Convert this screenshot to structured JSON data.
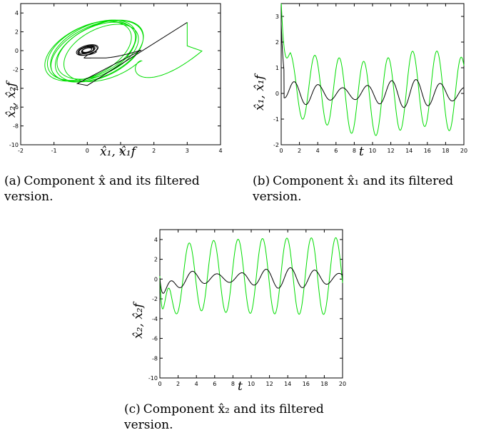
{
  "figure": {
    "captions": [
      {
        "id": "(a)",
        "line1": "Component x̂ and its filtered",
        "line2": "version."
      },
      {
        "id": "(b)",
        "line1": "Component x̂₁ and its filtered",
        "line2": "version."
      },
      {
        "id": "(c)",
        "line1": "Component x̂₂ and its filtered",
        "line2": "version."
      }
    ]
  },
  "chart_data": [
    {
      "type": "line",
      "panel": "a",
      "xlabel": "x̂₁, x̂₁f",
      "ylabel": "x̂₂, x̂₂f",
      "xlim": [
        -2,
        4
      ],
      "ylim": [
        -10,
        5
      ],
      "xticks": [
        -2,
        -1,
        0,
        1,
        2,
        3,
        4
      ],
      "yticks": [
        -10,
        -8,
        -6,
        -4,
        -2,
        0,
        2,
        4
      ],
      "colors": {
        "unfiltered": "#00dd00",
        "filtered": "#000000"
      },
      "phase_plot": true
    },
    {
      "type": "line",
      "panel": "b",
      "xlabel": "t",
      "ylabel": "x̂₁, x̂₁f",
      "xlim": [
        0,
        20
      ],
      "ylim": [
        -2,
        3.5
      ],
      "xticks": [
        0,
        2,
        4,
        6,
        8,
        10,
        12,
        14,
        16,
        18,
        20
      ],
      "yticks": [
        -2,
        -1,
        0,
        1,
        2,
        3
      ],
      "colors": {
        "unfiltered": "#00dd00",
        "filtered": "#000000"
      }
    },
    {
      "type": "line",
      "panel": "c",
      "xlabel": "t",
      "ylabel": "x̂₂, x̂₂f",
      "xlim": [
        0,
        20
      ],
      "ylim": [
        -10,
        5
      ],
      "xticks": [
        0,
        2,
        4,
        6,
        8,
        10,
        12,
        14,
        16,
        18,
        20
      ],
      "yticks": [
        -10,
        -8,
        -6,
        -4,
        -2,
        0,
        2,
        4
      ],
      "colors": {
        "unfiltered": "#00dd00",
        "filtered": "#000000"
      }
    }
  ]
}
